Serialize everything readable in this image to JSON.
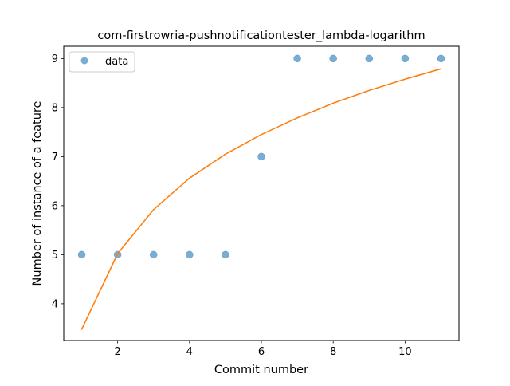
{
  "chart_data": {
    "type": "scatter",
    "title": "com-firstrowria-pushnotificationtester_lambda-logarithm",
    "xlabel": "Commit number",
    "ylabel": "Number of instance of a feature",
    "xlim": [
      0.5,
      11.5
    ],
    "ylim": [
      3.25,
      9.25
    ],
    "xticks": [
      2,
      4,
      6,
      8,
      10
    ],
    "yticks": [
      4,
      5,
      6,
      7,
      8,
      9
    ],
    "grid": false,
    "legend": {
      "position": "top-left"
    },
    "series": [
      {
        "name": "data",
        "kind": "scatter",
        "color": "#1f77b4",
        "x": [
          1,
          2,
          3,
          4,
          5,
          6,
          7,
          8,
          9,
          10,
          11
        ],
        "y": [
          5,
          5,
          5,
          5,
          5,
          7,
          9,
          9,
          9,
          9,
          9
        ]
      },
      {
        "kind": "line",
        "color": "#ff7f0e",
        "x": [
          1,
          2,
          3,
          4,
          5,
          6,
          7,
          8,
          9,
          10,
          11
        ],
        "y": [
          3.48,
          5.02,
          5.92,
          6.56,
          7.05,
          7.45,
          7.79,
          8.09,
          8.35,
          8.58,
          8.79
        ]
      }
    ]
  }
}
